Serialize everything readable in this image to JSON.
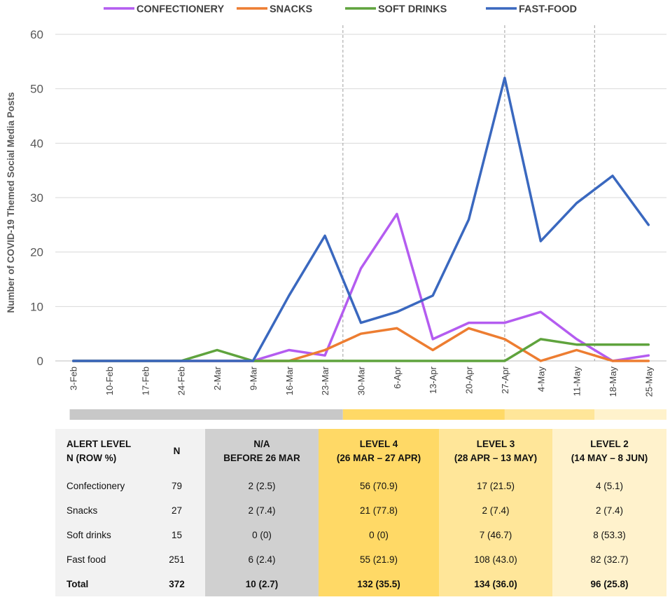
{
  "chart_data": {
    "type": "line",
    "title": "",
    "ylabel": "Number of COVID-19 Themed Social Media Posts",
    "xlabel": "",
    "ylim": [
      0,
      60
    ],
    "yticks": [
      0,
      10,
      20,
      30,
      40,
      50,
      60
    ],
    "categories": [
      "3-Feb",
      "10-Feb",
      "17-Feb",
      "24-Feb",
      "2-Mar",
      "9-Mar",
      "16-Mar",
      "23-Mar",
      "30-Mar",
      "6-Apr",
      "13-Apr",
      "20-Apr",
      "27-Apr",
      "4-May",
      "11-May",
      "18-May",
      "25-May"
    ],
    "series": [
      {
        "name": "CONFECTIONERY",
        "color": "#b45cf0",
        "values": [
          0,
          0,
          0,
          0,
          0,
          0,
          2,
          1,
          17,
          27,
          4,
          7,
          7,
          9,
          4,
          0,
          1
        ]
      },
      {
        "name": "SNACKS",
        "color": "#ed7d31",
        "values": [
          0,
          0,
          0,
          0,
          0,
          0,
          0,
          2,
          5,
          6,
          2,
          6,
          4,
          0,
          2,
          0,
          0
        ]
      },
      {
        "name": "SOFT DRINKS",
        "color": "#5fa33d",
        "values": [
          0,
          0,
          0,
          0,
          2,
          0,
          0,
          0,
          0,
          0,
          0,
          0,
          0,
          4,
          3,
          3,
          3
        ]
      },
      {
        "name": "FAST-FOOD",
        "color": "#3a68bf",
        "values": [
          0,
          0,
          0,
          0,
          0,
          0,
          12,
          23,
          7,
          9,
          12,
          26,
          52,
          22,
          29,
          34,
          25
        ]
      }
    ],
    "grid": true,
    "legend_position": "top",
    "vertical_markers_after_index": [
      7.5,
      12.0,
      14.5
    ],
    "alert_bands": [
      {
        "from": -0.1,
        "to": 7.5,
        "color": "#c8c8c8"
      },
      {
        "from": 7.5,
        "to": 12.0,
        "color": "#ffd966"
      },
      {
        "from": 12.0,
        "to": 14.5,
        "color": "#ffe699"
      },
      {
        "from": 14.5,
        "to": 16.5,
        "color": "#fff2cc"
      }
    ]
  },
  "table": {
    "header": {
      "label_line1": "ALERT LEVEL",
      "label_line2": "N (ROW %)",
      "n": "N",
      "cols": [
        {
          "line1": "N/A",
          "line2": "BEFORE 26 MAR"
        },
        {
          "line1": "LEVEL 4",
          "line2": "(26 MAR – 27 APR)"
        },
        {
          "line1": "LEVEL 3",
          "line2": "(28 APR – 13 MAY)"
        },
        {
          "line1": "LEVEL 2",
          "line2": "(14 MAY – 8 JUN)"
        }
      ]
    },
    "rows": [
      {
        "label": "Confectionery",
        "n": "79",
        "cells": [
          "2 (2.5)",
          "56 (70.9)",
          "17 (21.5)",
          "4 (5.1)"
        ]
      },
      {
        "label": "Snacks",
        "n": "27",
        "cells": [
          "2 (7.4)",
          "21 (77.8)",
          "2 (7.4)",
          "2 (7.4)"
        ]
      },
      {
        "label": "Soft drinks",
        "n": "15",
        "cells": [
          "0 (0)",
          "0 (0)",
          "7 (46.7)",
          "8 (53.3)"
        ]
      },
      {
        "label": "Fast food",
        "n": "251",
        "cells": [
          "6 (2.4)",
          "55 (21.9)",
          "108 (43.0)",
          "82 (32.7)"
        ]
      }
    ],
    "total": {
      "label": "Total",
      "n": "372",
      "cells": [
        "10 (2.7)",
        "132 (35.5)",
        "134 (36.0)",
        "96 (25.8)"
      ]
    }
  }
}
